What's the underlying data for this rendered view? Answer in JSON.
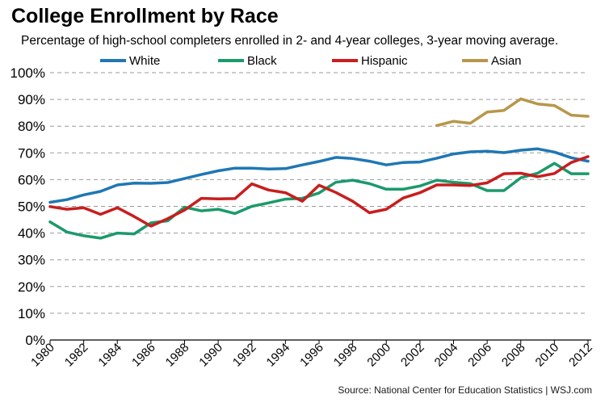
{
  "title": "College Enrollment by Race",
  "subtitle": "Percentage of high-school completers enrolled in 2- and 4-year colleges, 3-year moving average.",
  "source": "Source: National Center for Education Statistics  |  WSJ.com",
  "chart_data": {
    "type": "line",
    "title": "College Enrollment by Race",
    "subtitle": "Percentage of high-school completers enrolled in 2- and 4-year colleges, 3-year moving average.",
    "xlabel": "",
    "ylabel": "",
    "xlim": [
      1980,
      2012
    ],
    "ylim": [
      0,
      100
    ],
    "grid": true,
    "legend_position": "top",
    "x_ticks": [
      1980,
      1982,
      1984,
      1986,
      1988,
      1990,
      1992,
      1994,
      1996,
      1998,
      2000,
      2002,
      2004,
      2006,
      2008,
      2010,
      2012
    ],
    "y_ticks": [
      {
        "value": 0,
        "label": "0%"
      },
      {
        "value": 10,
        "label": "10%"
      },
      {
        "value": 20,
        "label": "20%"
      },
      {
        "value": 30,
        "label": "30%"
      },
      {
        "value": 40,
        "label": "40%"
      },
      {
        "value": 50,
        "label": "50%"
      },
      {
        "value": 60,
        "label": "60%"
      },
      {
        "value": 70,
        "label": "70%"
      },
      {
        "value": 80,
        "label": "80%"
      },
      {
        "value": 90,
        "label": "90%"
      },
      {
        "value": 100,
        "label": "100%"
      }
    ],
    "series": [
      {
        "name": "White",
        "color": "#1f77b4",
        "x": [
          1980,
          1981,
          1982,
          1983,
          1984,
          1985,
          1986,
          1987,
          1988,
          1989,
          1990,
          1991,
          1992,
          1993,
          1994,
          1995,
          1996,
          1997,
          1998,
          1999,
          2000,
          2001,
          2002,
          2003,
          2004,
          2005,
          2006,
          2007,
          2008,
          2009,
          2010,
          2011,
          2012
        ],
        "values": [
          51.5,
          52.5,
          54.3,
          55.6,
          58.0,
          58.7,
          58.6,
          58.9,
          60.4,
          61.9,
          63.3,
          64.3,
          64.3,
          64.0,
          64.1,
          65.5,
          66.8,
          68.3,
          67.9,
          66.9,
          65.5,
          66.4,
          66.6,
          68.0,
          69.6,
          70.4,
          70.6,
          70.1,
          71.0,
          71.5,
          70.3,
          68.2,
          66.9
        ]
      },
      {
        "name": "Black",
        "color": "#1a9a6b",
        "x": [
          1980,
          1981,
          1982,
          1983,
          1984,
          1985,
          1986,
          1987,
          1988,
          1989,
          1990,
          1991,
          1992,
          1993,
          1994,
          1995,
          1996,
          1997,
          1998,
          1999,
          2000,
          2001,
          2002,
          2003,
          2004,
          2005,
          2006,
          2007,
          2008,
          2009,
          2010,
          2011,
          2012
        ],
        "values": [
          44.2,
          40.4,
          39.0,
          38.1,
          40.0,
          39.7,
          43.8,
          44.6,
          49.7,
          48.3,
          48.9,
          47.3,
          50.0,
          51.3,
          52.7,
          53.0,
          55.0,
          59.0,
          59.8,
          58.5,
          56.4,
          56.4,
          57.6,
          59.8,
          59.0,
          58.5,
          55.9,
          55.9,
          60.7,
          62.4,
          66.1,
          62.2,
          62.2
        ]
      },
      {
        "name": "Hispanic",
        "color": "#c81e1e",
        "x": [
          1980,
          1981,
          1982,
          1983,
          1984,
          1985,
          1986,
          1987,
          1988,
          1989,
          1990,
          1991,
          1992,
          1993,
          1994,
          1995,
          1996,
          1997,
          1998,
          1999,
          2000,
          2001,
          2002,
          2003,
          2004,
          2005,
          2006,
          2007,
          2008,
          2009,
          2010,
          2011,
          2012
        ],
        "values": [
          49.9,
          48.9,
          49.5,
          47.0,
          49.5,
          46.2,
          42.6,
          45.4,
          48.6,
          53.0,
          52.8,
          52.9,
          58.4,
          56.1,
          55.1,
          51.9,
          57.9,
          55.2,
          51.9,
          47.6,
          48.9,
          53.1,
          55.1,
          58.0,
          58.0,
          57.8,
          58.8,
          62.2,
          62.4,
          61.1,
          62.3,
          66.4,
          68.6
        ]
      },
      {
        "name": "Asian",
        "color": "#b8974a",
        "x": [
          2003,
          2004,
          2005,
          2006,
          2007,
          2008,
          2009,
          2010,
          2011,
          2012
        ],
        "values": [
          80.2,
          81.8,
          81.1,
          85.3,
          85.9,
          90.2,
          88.3,
          87.7,
          84.1,
          83.7
        ]
      }
    ]
  }
}
